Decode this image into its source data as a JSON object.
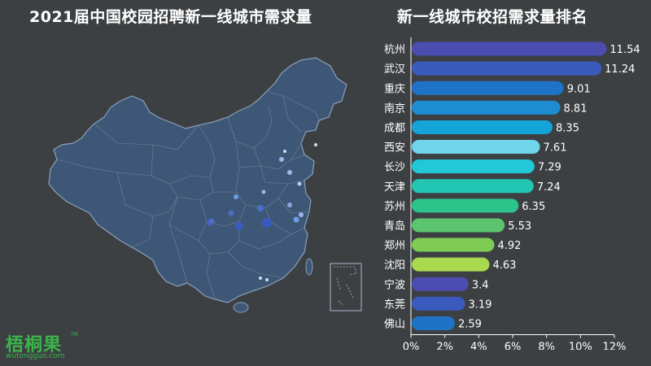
{
  "titles": {
    "map_title": "2021届中国校园招聘新一线城市需求量",
    "chart_title": "新一线城市校招需求量排名"
  },
  "logo": {
    "text": "梧桐果",
    "sub": "wutongguo.com",
    "tm": "TM"
  },
  "colors": {
    "background": "#3d4043",
    "map_fill": "#3f5776",
    "map_stroke": "#7a8ea8",
    "axis": "#ffffff"
  },
  "chart_data": {
    "type": "bar",
    "orientation": "horizontal",
    "title": "新一线城市校招需求量排名",
    "categories": [
      "杭州",
      "武汉",
      "重庆",
      "南京",
      "成都",
      "西安",
      "长沙",
      "天津",
      "苏州",
      "青岛",
      "郑州",
      "沈阳",
      "宁波",
      "东莞",
      "佛山"
    ],
    "values": [
      11.54,
      11.24,
      9.01,
      8.81,
      8.35,
      7.61,
      7.29,
      7.24,
      6.35,
      5.53,
      4.92,
      4.63,
      3.4,
      3.19,
      2.59
    ],
    "value_labels": [
      "11.54",
      "11.24",
      "9.01",
      "8.81",
      "8.35",
      "7.61",
      "7.29",
      "7.24",
      "6.35",
      "5.53",
      "4.92",
      "4.63",
      "3.4",
      "3.19",
      "2.59"
    ],
    "bar_colors": [
      "#4b4db0",
      "#3a5bbd",
      "#1f73c7",
      "#1d8cd1",
      "#15a4d8",
      "#6fd5ea",
      "#23c8d6",
      "#22c6b3",
      "#2dc48b",
      "#5cc46f",
      "#7fcc55",
      "#a8d94e",
      "#4b4db0",
      "#3a5bbd",
      "#1f73c7"
    ],
    "xlim": [
      0,
      12
    ],
    "x_ticks": [
      "0%",
      "2%",
      "4%",
      "6%",
      "8%",
      "10%",
      "12%"
    ],
    "x_tick_values": [
      0,
      2,
      4,
      6,
      8,
      10,
      12
    ],
    "xlabel": "",
    "ylabel": "",
    "grid": false,
    "legend": false
  }
}
